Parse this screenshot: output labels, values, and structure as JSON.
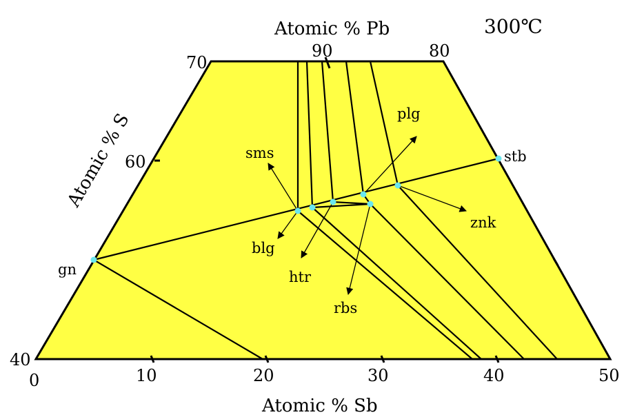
{
  "temperature": "300℃",
  "axes": {
    "top_title": "Atomic % Pb",
    "left_title": "Atomic % S",
    "bottom_title": "Atomic % Sb",
    "top_ticks": [
      "90",
      "80"
    ],
    "left_ticks": [
      "70",
      "60",
      "40"
    ],
    "bottom_ticks": [
      "0",
      "10",
      "20",
      "30",
      "40",
      "50"
    ]
  },
  "phases": {
    "gn": "gn",
    "stb": "stb",
    "sms": "sms",
    "plg": "plg",
    "blg": "blg",
    "htr": "htr",
    "rbs": "rbs",
    "znk": "znk"
  },
  "colors": {
    "field": "#ffff44",
    "line": "#000000",
    "point": "#6be7ee"
  }
}
